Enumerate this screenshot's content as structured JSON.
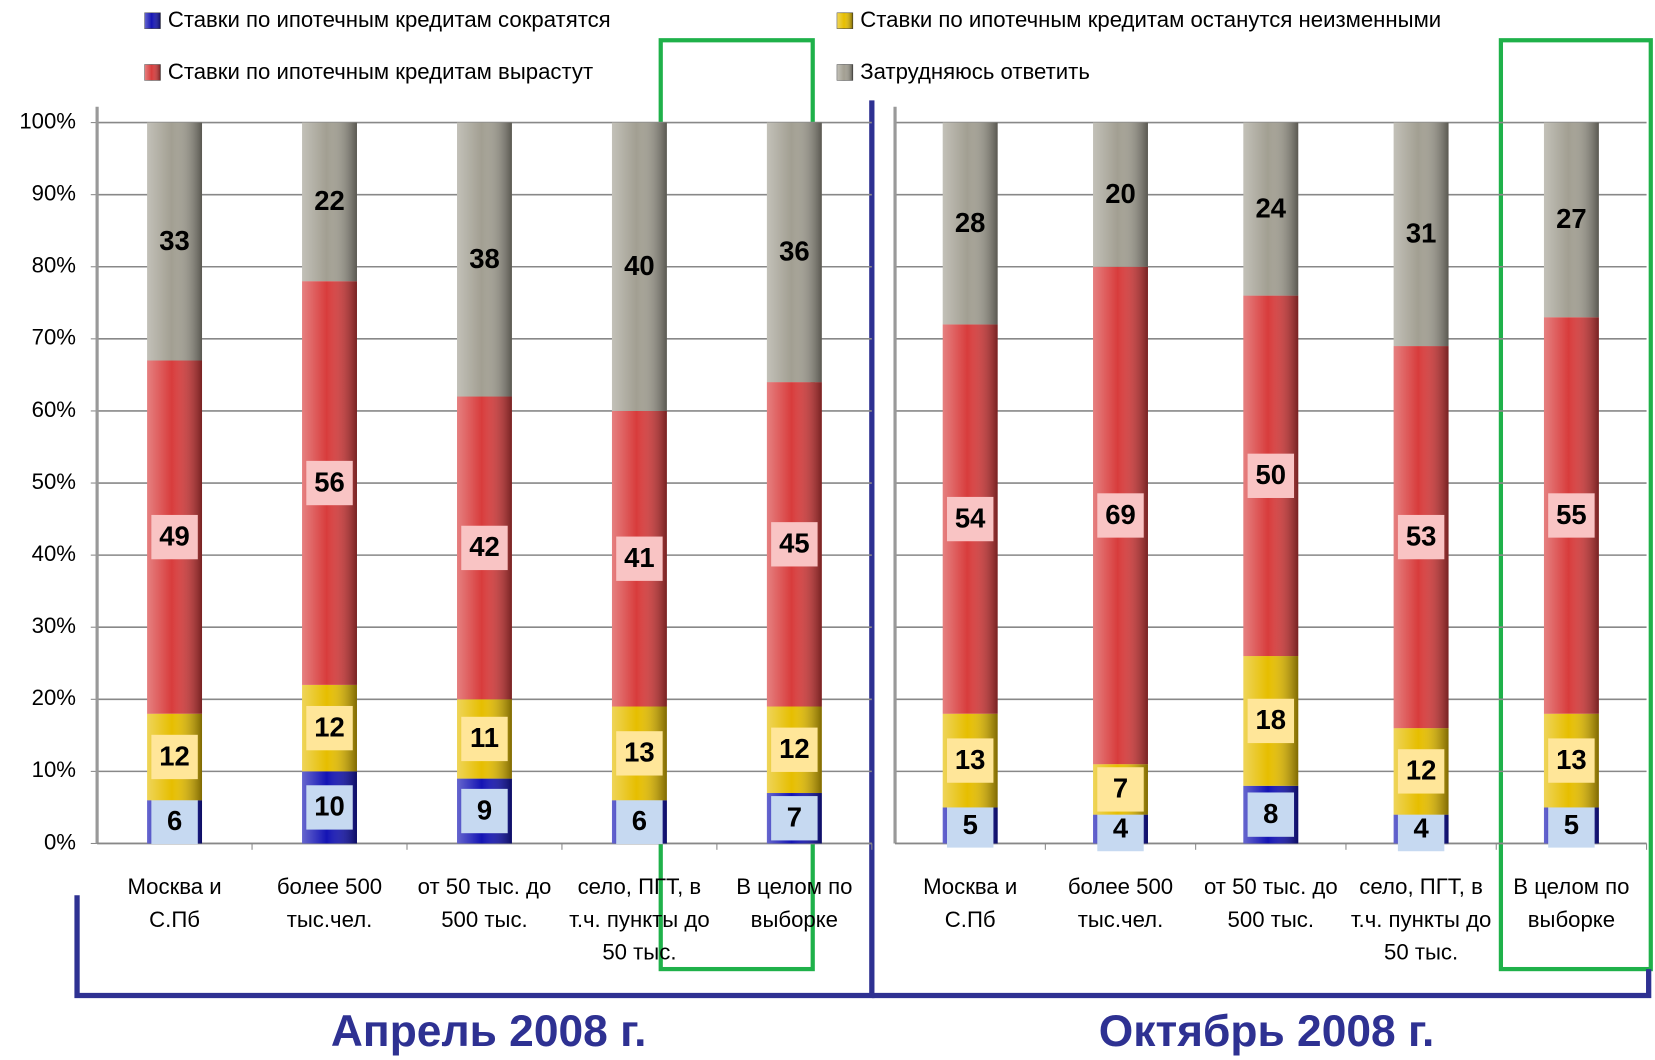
{
  "chart_data": [
    {
      "type": "stacked_bar",
      "title": "Апрель 2008 г.",
      "categories": [
        "Москва и С.Пб",
        "более 500 тыс.чел.",
        "от 50 тыс. до 500 тыс.",
        "село, ПГТ, в т.ч. пункты до 50 тыс.",
        "В целом по выборке"
      ],
      "series": [
        {
          "name": "Ставки по ипотечным кредитам сократятся",
          "color": "#1414b4",
          "values": [
            6,
            10,
            9,
            6,
            7
          ]
        },
        {
          "name": "Ставки по ипотечным кредитам останутся неизменными",
          "color": "#e6be00",
          "values": [
            12,
            12,
            11,
            13,
            12
          ]
        },
        {
          "name": "Ставки по ипотечным кредитам вырастут",
          "color": "#d83c3c",
          "values": [
            49,
            56,
            42,
            41,
            45
          ]
        },
        {
          "name": "Затрудняюсь ответить",
          "color": "#a29f92",
          "values": [
            33,
            22,
            38,
            40,
            36
          ]
        }
      ],
      "ylim": [
        0,
        100
      ],
      "yticks": [
        {
          "value": 0,
          "label": "0%"
        },
        {
          "value": 10,
          "label": "10%"
        },
        {
          "value": 20,
          "label": "20%"
        },
        {
          "value": 30,
          "label": "30%"
        },
        {
          "value": 40,
          "label": "40%"
        },
        {
          "value": 50,
          "label": "50%"
        },
        {
          "value": 60,
          "label": "60%"
        },
        {
          "value": 70,
          "label": "70%"
        },
        {
          "value": 80,
          "label": "80%"
        },
        {
          "value": 90,
          "label": "90%"
        },
        {
          "value": 100,
          "label": "100%"
        }
      ],
      "grid": true
    },
    {
      "type": "stacked_bar",
      "title": "Октябрь 2008 г.",
      "categories": [
        "Москва и С.Пб",
        "более 500 тыс.чел.",
        "от 50 тыс. до 500 тыс.",
        "село, ПГТ, в т.ч. пункты до 50 тыс.",
        "В целом по выборке"
      ],
      "series": [
        {
          "color": "#1414b4",
          "values": [
            5,
            4,
            8,
            4,
            5
          ]
        },
        {
          "color": "#e6be00",
          "values": [
            13,
            7,
            18,
            12,
            13
          ]
        },
        {
          "color": "#d83c3c",
          "values": [
            54,
            69,
            50,
            53,
            55
          ]
        },
        {
          "color": "#a29f92",
          "values": [
            28,
            20,
            24,
            31,
            27
          ]
        }
      ],
      "ylim": [
        0,
        100
      ],
      "grid": true
    }
  ]
}
